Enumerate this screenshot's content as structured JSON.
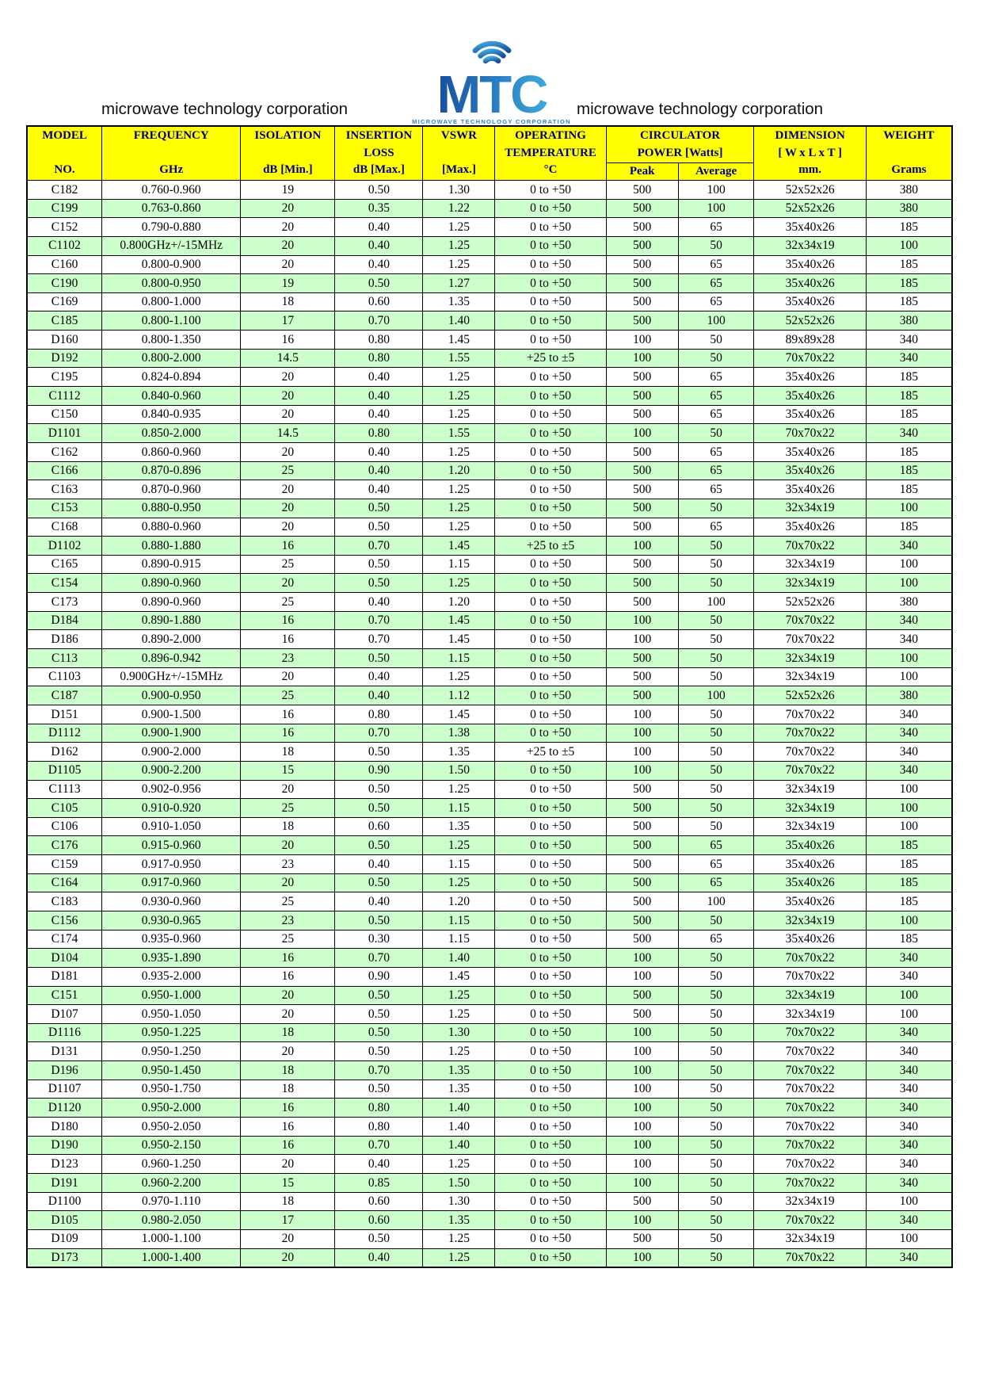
{
  "page": {
    "brand_left": "microwave technology corporation",
    "brand_right": "microwave technology corporation",
    "logo": {
      "text": "MTC",
      "caption": "MICROWAVE TECHNOLOGY CORPORATION"
    }
  },
  "colors": {
    "header_bg": "#FFFF00",
    "header_text": "#00008B",
    "row_alt_bg": "#CCFFCC",
    "logo_blue_dark": "#174F9E",
    "logo_blue_light": "#3FA9DC",
    "caption_blue": "#2E86C9"
  },
  "table": {
    "columns": {
      "model": {
        "label": "MODEL",
        "label2": "",
        "unit": "NO."
      },
      "frequency": {
        "label": "FREQUENCY",
        "label2": "",
        "unit": "GHz"
      },
      "isolation": {
        "label": "ISOLATION",
        "label2": "",
        "unit": "dB [Min.]"
      },
      "insertion_loss": {
        "label": "INSERTION",
        "label2": "LOSS",
        "unit": "dB [Max.]"
      },
      "vswr": {
        "label": "VSWR",
        "label2": "",
        "unit": "[Max.]"
      },
      "operating_temperature": {
        "label": "OPERATING",
        "label2": "TEMPERATURE",
        "unit": "°C"
      },
      "circulator_power": {
        "label": "CIRCULATOR",
        "label2": "POWER  [Watts]",
        "peak": "Peak",
        "average": "Average"
      },
      "dimension": {
        "label": "DIMENSION",
        "label2": "[ W x L x T ]",
        "unit": "mm."
      },
      "weight": {
        "label": "WEIGHT",
        "label2": "",
        "unit": "Grams"
      }
    },
    "rows": [
      [
        "C182",
        "0.760-0.960",
        "19",
        "0.50",
        "1.30",
        "0  to +50",
        "500",
        "100",
        "52x52x26",
        "380"
      ],
      [
        "C199",
        "0.763-0.860",
        "20",
        "0.35",
        "1.22",
        "0  to +50",
        "500",
        "100",
        "52x52x26",
        "380"
      ],
      [
        "C152",
        "0.790-0.880",
        "20",
        "0.40",
        "1.25",
        "0  to +50",
        "500",
        "65",
        "35x40x26",
        "185"
      ],
      [
        "C1102",
        "0.800GHz+/-15MHz",
        "20",
        "0.40",
        "1.25",
        "0  to +50",
        "500",
        "50",
        "32x34x19",
        "100"
      ],
      [
        "C160",
        "0.800-0.900",
        "20",
        "0.40",
        "1.25",
        "0  to +50",
        "500",
        "65",
        "35x40x26",
        "185"
      ],
      [
        "C190",
        "0.800-0.950",
        "19",
        "0.50",
        "1.27",
        "0  to +50",
        "500",
        "65",
        "35x40x26",
        "185"
      ],
      [
        "C169",
        "0.800-1.000",
        "18",
        "0.60",
        "1.35",
        "0  to +50",
        "500",
        "65",
        "35x40x26",
        "185"
      ],
      [
        "C185",
        "0.800-1.100",
        "17",
        "0.70",
        "1.40",
        "0  to +50",
        "500",
        "100",
        "52x52x26",
        "380"
      ],
      [
        "D160",
        "0.800-1.350",
        "16",
        "0.80",
        "1.45",
        "0  to +50",
        "100",
        "50",
        "89x89x28",
        "340"
      ],
      [
        "D192",
        "0.800-2.000",
        "14.5",
        "0.80",
        "1.55",
        "+25  to ±5",
        "100",
        "50",
        "70x70x22",
        "340"
      ],
      [
        "C195",
        "0.824-0.894",
        "20",
        "0.40",
        "1.25",
        "0  to +50",
        "500",
        "65",
        "35x40x26",
        "185"
      ],
      [
        "C1112",
        "0.840-0.960",
        "20",
        "0.40",
        "1.25",
        "0  to +50",
        "500",
        "65",
        "35x40x26",
        "185"
      ],
      [
        "C150",
        "0.840-0.935",
        "20",
        "0.40",
        "1.25",
        "0  to +50",
        "500",
        "65",
        "35x40x26",
        "185"
      ],
      [
        "D1101",
        "0.850-2.000",
        "14.5",
        "0.80",
        "1.55",
        "0  to +50",
        "100",
        "50",
        "70x70x22",
        "340"
      ],
      [
        "C162",
        "0.860-0.960",
        "20",
        "0.40",
        "1.25",
        "0  to +50",
        "500",
        "65",
        "35x40x26",
        "185"
      ],
      [
        "C166",
        "0.870-0.896",
        "25",
        "0.40",
        "1.20",
        "0  to +50",
        "500",
        "65",
        "35x40x26",
        "185"
      ],
      [
        "C163",
        "0.870-0.960",
        "20",
        "0.40",
        "1.25",
        "0  to +50",
        "500",
        "65",
        "35x40x26",
        "185"
      ],
      [
        "C153",
        "0.880-0.950",
        "20",
        "0.50",
        "1.25",
        "0  to +50",
        "500",
        "50",
        "32x34x19",
        "100"
      ],
      [
        "C168",
        "0.880-0.960",
        "20",
        "0.50",
        "1.25",
        "0  to +50",
        "500",
        "65",
        "35x40x26",
        "185"
      ],
      [
        "D1102",
        "0.880-1.880",
        "16",
        "0.70",
        "1.45",
        "+25  to ±5",
        "100",
        "50",
        "70x70x22",
        "340"
      ],
      [
        "C165",
        "0.890-0.915",
        "25",
        "0.50",
        "1.15",
        "0  to +50",
        "500",
        "50",
        "32x34x19",
        "100"
      ],
      [
        "C154",
        "0.890-0.960",
        "20",
        "0.50",
        "1.25",
        "0  to +50",
        "500",
        "50",
        "32x34x19",
        "100"
      ],
      [
        "C173",
        "0.890-0.960",
        "25",
        "0.40",
        "1.20",
        "0  to +50",
        "500",
        "100",
        "52x52x26",
        "380"
      ],
      [
        "D184",
        "0.890-1.880",
        "16",
        "0.70",
        "1.45",
        "0  to +50",
        "100",
        "50",
        "70x70x22",
        "340"
      ],
      [
        "D186",
        "0.890-2.000",
        "16",
        "0.70",
        "1.45",
        "0  to +50",
        "100",
        "50",
        "70x70x22",
        "340"
      ],
      [
        "C113",
        "0.896-0.942",
        "23",
        "0.50",
        "1.15",
        "0  to +50",
        "500",
        "50",
        "32x34x19",
        "100"
      ],
      [
        "C1103",
        "0.900GHz+/-15MHz",
        "20",
        "0.40",
        "1.25",
        "0  to +50",
        "500",
        "50",
        "32x34x19",
        "100"
      ],
      [
        "C187",
        "0.900-0.950",
        "25",
        "0.40",
        "1.12",
        "0  to +50",
        "500",
        "100",
        "52x52x26",
        "380"
      ],
      [
        "D151",
        "0.900-1.500",
        "16",
        "0.80",
        "1.45",
        "0  to +50",
        "100",
        "50",
        "70x70x22",
        "340"
      ],
      [
        "D1112",
        "0.900-1.900",
        "16",
        "0.70",
        "1.38",
        "0  to +50",
        "100",
        "50",
        "70x70x22",
        "340"
      ],
      [
        "D162",
        "0.900-2.000",
        "18",
        "0.50",
        "1.35",
        "+25  to ±5",
        "100",
        "50",
        "70x70x22",
        "340"
      ],
      [
        "D1105",
        "0.900-2.200",
        "15",
        "0.90",
        "1.50",
        "0  to +50",
        "100",
        "50",
        "70x70x22",
        "340"
      ],
      [
        "C1113",
        "0.902-0.956",
        "20",
        "0.50",
        "1.25",
        "0  to +50",
        "500",
        "50",
        "32x34x19",
        "100"
      ],
      [
        "C105",
        "0.910-0.920",
        "25",
        "0.50",
        "1.15",
        "0  to +50",
        "500",
        "50",
        "32x34x19",
        "100"
      ],
      [
        "C106",
        "0.910-1.050",
        "18",
        "0.60",
        "1.35",
        "0  to +50",
        "500",
        "50",
        "32x34x19",
        "100"
      ],
      [
        "C176",
        "0.915-0.960",
        "20",
        "0.50",
        "1.25",
        "0  to +50",
        "500",
        "65",
        "35x40x26",
        "185"
      ],
      [
        "C159",
        "0.917-0.950",
        "23",
        "0.40",
        "1.15",
        "0  to +50",
        "500",
        "65",
        "35x40x26",
        "185"
      ],
      [
        "C164",
        "0.917-0.960",
        "20",
        "0.50",
        "1.25",
        "0  to +50",
        "500",
        "65",
        "35x40x26",
        "185"
      ],
      [
        "C183",
        "0.930-0.960",
        "25",
        "0.40",
        "1.20",
        "0  to +50",
        "500",
        "100",
        "35x40x26",
        "185"
      ],
      [
        "C156",
        "0.930-0.965",
        "23",
        "0.50",
        "1.15",
        "0  to +50",
        "500",
        "50",
        "32x34x19",
        "100"
      ],
      [
        "C174",
        "0.935-0.960",
        "25",
        "0.30",
        "1.15",
        "0  to +50",
        "500",
        "65",
        "35x40x26",
        "185"
      ],
      [
        "D104",
        "0.935-1.890",
        "16",
        "0.70",
        "1.40",
        "0  to +50",
        "100",
        "50",
        "70x70x22",
        "340"
      ],
      [
        "D181",
        "0.935-2.000",
        "16",
        "0.90",
        "1.45",
        "0  to +50",
        "100",
        "50",
        "70x70x22",
        "340"
      ],
      [
        "C151",
        "0.950-1.000",
        "20",
        "0.50",
        "1.25",
        "0  to +50",
        "500",
        "50",
        "32x34x19",
        "100"
      ],
      [
        "D107",
        "0.950-1.050",
        "20",
        "0.50",
        "1.25",
        "0  to +50",
        "500",
        "50",
        "32x34x19",
        "100"
      ],
      [
        "D1116",
        "0.950-1.225",
        "18",
        "0.50",
        "1.30",
        "0  to +50",
        "100",
        "50",
        "70x70x22",
        "340"
      ],
      [
        "D131",
        "0.950-1.250",
        "20",
        "0.50",
        "1.25",
        "0  to +50",
        "100",
        "50",
        "70x70x22",
        "340"
      ],
      [
        "D196",
        "0.950-1.450",
        "18",
        "0.70",
        "1.35",
        "0  to +50",
        "100",
        "50",
        "70x70x22",
        "340"
      ],
      [
        "D1107",
        "0.950-1.750",
        "18",
        "0.50",
        "1.35",
        "0  to +50",
        "100",
        "50",
        "70x70x22",
        "340"
      ],
      [
        "D1120",
        "0.950-2.000",
        "16",
        "0.80",
        "1.40",
        "0  to +50",
        "100",
        "50",
        "70x70x22",
        "340"
      ],
      [
        "D180",
        "0.950-2.050",
        "16",
        "0.80",
        "1.40",
        "0  to +50",
        "100",
        "50",
        "70x70x22",
        "340"
      ],
      [
        "D190",
        "0.950-2.150",
        "16",
        "0.70",
        "1.40",
        "0  to +50",
        "100",
        "50",
        "70x70x22",
        "340"
      ],
      [
        "D123",
        "0.960-1.250",
        "20",
        "0.40",
        "1.25",
        "0  to +50",
        "100",
        "50",
        "70x70x22",
        "340"
      ],
      [
        "D191",
        "0.960-2.200",
        "15",
        "0.85",
        "1.50",
        "0  to +50",
        "100",
        "50",
        "70x70x22",
        "340"
      ],
      [
        "D1100",
        "0.970-1.110",
        "18",
        "0.60",
        "1.30",
        "0  to +50",
        "500",
        "50",
        "32x34x19",
        "100"
      ],
      [
        "D105",
        "0.980-2.050",
        "17",
        "0.60",
        "1.35",
        "0  to +50",
        "100",
        "50",
        "70x70x22",
        "340"
      ],
      [
        "D109",
        "1.000-1.100",
        "20",
        "0.50",
        "1.25",
        "0  to +50",
        "500",
        "50",
        "32x34x19",
        "100"
      ],
      [
        "D173",
        "1.000-1.400",
        "20",
        "0.40",
        "1.25",
        "0  to +50",
        "100",
        "50",
        "70x70x22",
        "340"
      ]
    ]
  }
}
